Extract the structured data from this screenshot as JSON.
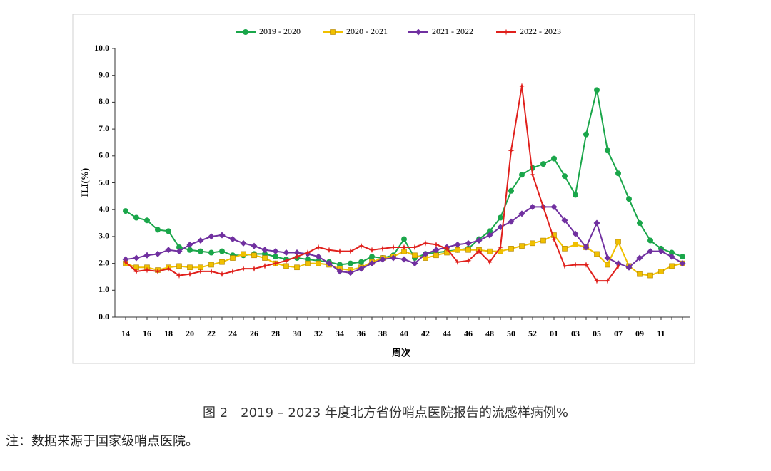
{
  "chart_data": {
    "type": "line",
    "y_label": "ILI(%)",
    "x_label": "周次",
    "categories": [
      "14",
      null,
      "16",
      null,
      "18",
      null,
      "20",
      null,
      "22",
      null,
      "24",
      null,
      "26",
      null,
      "28",
      null,
      "30",
      null,
      "32",
      null,
      "34",
      null,
      "36",
      null,
      "38",
      null,
      "40",
      null,
      "42",
      null,
      "44",
      null,
      "46",
      null,
      "48",
      null,
      "50",
      null,
      "52",
      null,
      "01",
      null,
      "03",
      null,
      "05",
      null,
      "07",
      null,
      "09",
      null,
      "11",
      null,
      null
    ],
    "ylim": [
      0,
      10
    ],
    "yticks": [
      {
        "value": 0,
        "label": "0.0"
      },
      {
        "value": 1,
        "label": "1.0"
      },
      {
        "value": 2,
        "label": "2.0"
      },
      {
        "value": 3,
        "label": "3.0"
      },
      {
        "value": 4,
        "label": "4.0"
      },
      {
        "value": 5,
        "label": "5.0"
      },
      {
        "value": 6,
        "label": "6.0"
      },
      {
        "value": 7,
        "label": "7.0"
      },
      {
        "value": 8,
        "label": "8.0"
      },
      {
        "value": 9,
        "label": "9.0"
      },
      {
        "value": 10,
        "label": "10.0"
      }
    ],
    "legend": "top",
    "series": [
      {
        "name": "2019 - 2020",
        "color": "#1aa64a",
        "marker": "circle",
        "values": [
          3.95,
          3.7,
          3.6,
          3.25,
          3.2,
          2.6,
          2.5,
          2.45,
          2.4,
          2.45,
          2.3,
          2.3,
          2.35,
          2.35,
          2.25,
          2.15,
          2.2,
          2.15,
          2.1,
          2.05,
          1.95,
          2.0,
          2.05,
          2.25,
          2.2,
          2.3,
          2.9,
          2.2,
          2.35,
          2.4,
          2.45,
          2.5,
          2.55,
          2.9,
          3.2,
          3.7,
          4.7,
          5.3,
          5.55,
          5.7,
          5.9,
          5.25,
          4.55,
          6.8,
          8.45,
          6.2,
          5.35,
          4.4,
          3.5,
          2.85,
          2.55,
          2.4,
          2.25
        ]
      },
      {
        "name": "2020 - 2021",
        "color": "#f0c000",
        "marker": "square",
        "values": [
          2.0,
          1.85,
          1.85,
          1.75,
          1.85,
          1.9,
          1.85,
          1.85,
          1.95,
          2.05,
          2.2,
          2.35,
          2.3,
          2.2,
          2.0,
          1.9,
          1.85,
          2.0,
          2.0,
          1.95,
          1.8,
          1.75,
          1.85,
          2.05,
          2.2,
          2.25,
          2.45,
          2.3,
          2.2,
          2.3,
          2.4,
          2.5,
          2.5,
          2.5,
          2.45,
          2.45,
          2.55,
          2.65,
          2.75,
          2.85,
          3.05,
          2.55,
          2.7,
          2.6,
          2.35,
          1.95,
          2.8,
          1.9,
          1.6,
          1.55,
          1.7,
          1.9,
          2.0
        ]
      },
      {
        "name": "2021 - 2022",
        "color": "#7030a0",
        "marker": "diamond",
        "values": [
          2.15,
          2.2,
          2.3,
          2.35,
          2.5,
          2.45,
          2.7,
          2.85,
          3.0,
          3.05,
          2.9,
          2.75,
          2.65,
          2.5,
          2.45,
          2.4,
          2.4,
          2.35,
          2.25,
          2.0,
          1.7,
          1.65,
          1.8,
          2.0,
          2.15,
          2.2,
          2.15,
          2.0,
          2.35,
          2.5,
          2.6,
          2.7,
          2.75,
          2.85,
          3.05,
          3.35,
          3.55,
          3.85,
          4.1,
          4.1,
          4.1,
          3.6,
          3.1,
          2.6,
          3.5,
          2.2,
          2.0,
          1.85,
          2.2,
          2.45,
          2.45,
          2.25,
          2.0
        ]
      },
      {
        "name": "2022 - 2023",
        "color": "#e0201c",
        "marker": "star",
        "values": [
          2.05,
          1.7,
          1.75,
          1.7,
          1.8,
          1.55,
          1.6,
          1.7,
          1.7,
          1.6,
          1.7,
          1.8,
          1.8,
          1.9,
          2.0,
          2.1,
          2.25,
          2.4,
          2.6,
          2.5,
          2.45,
          2.45,
          2.65,
          2.5,
          2.55,
          2.6,
          2.6,
          2.6,
          2.75,
          2.7,
          2.55,
          2.05,
          2.1,
          2.45,
          2.05,
          2.6,
          6.2,
          8.6,
          5.3,
          4.1,
          2.9,
          1.9,
          1.95,
          1.95,
          1.35,
          1.35,
          1.9,
          null,
          null,
          null,
          null,
          null,
          null
        ]
      }
    ]
  },
  "caption": "图 2　2019 – 2023 年度北方省份哨点医院报告的流感样病例%",
  "note": "注：数据来源于国家级哨点医院。"
}
